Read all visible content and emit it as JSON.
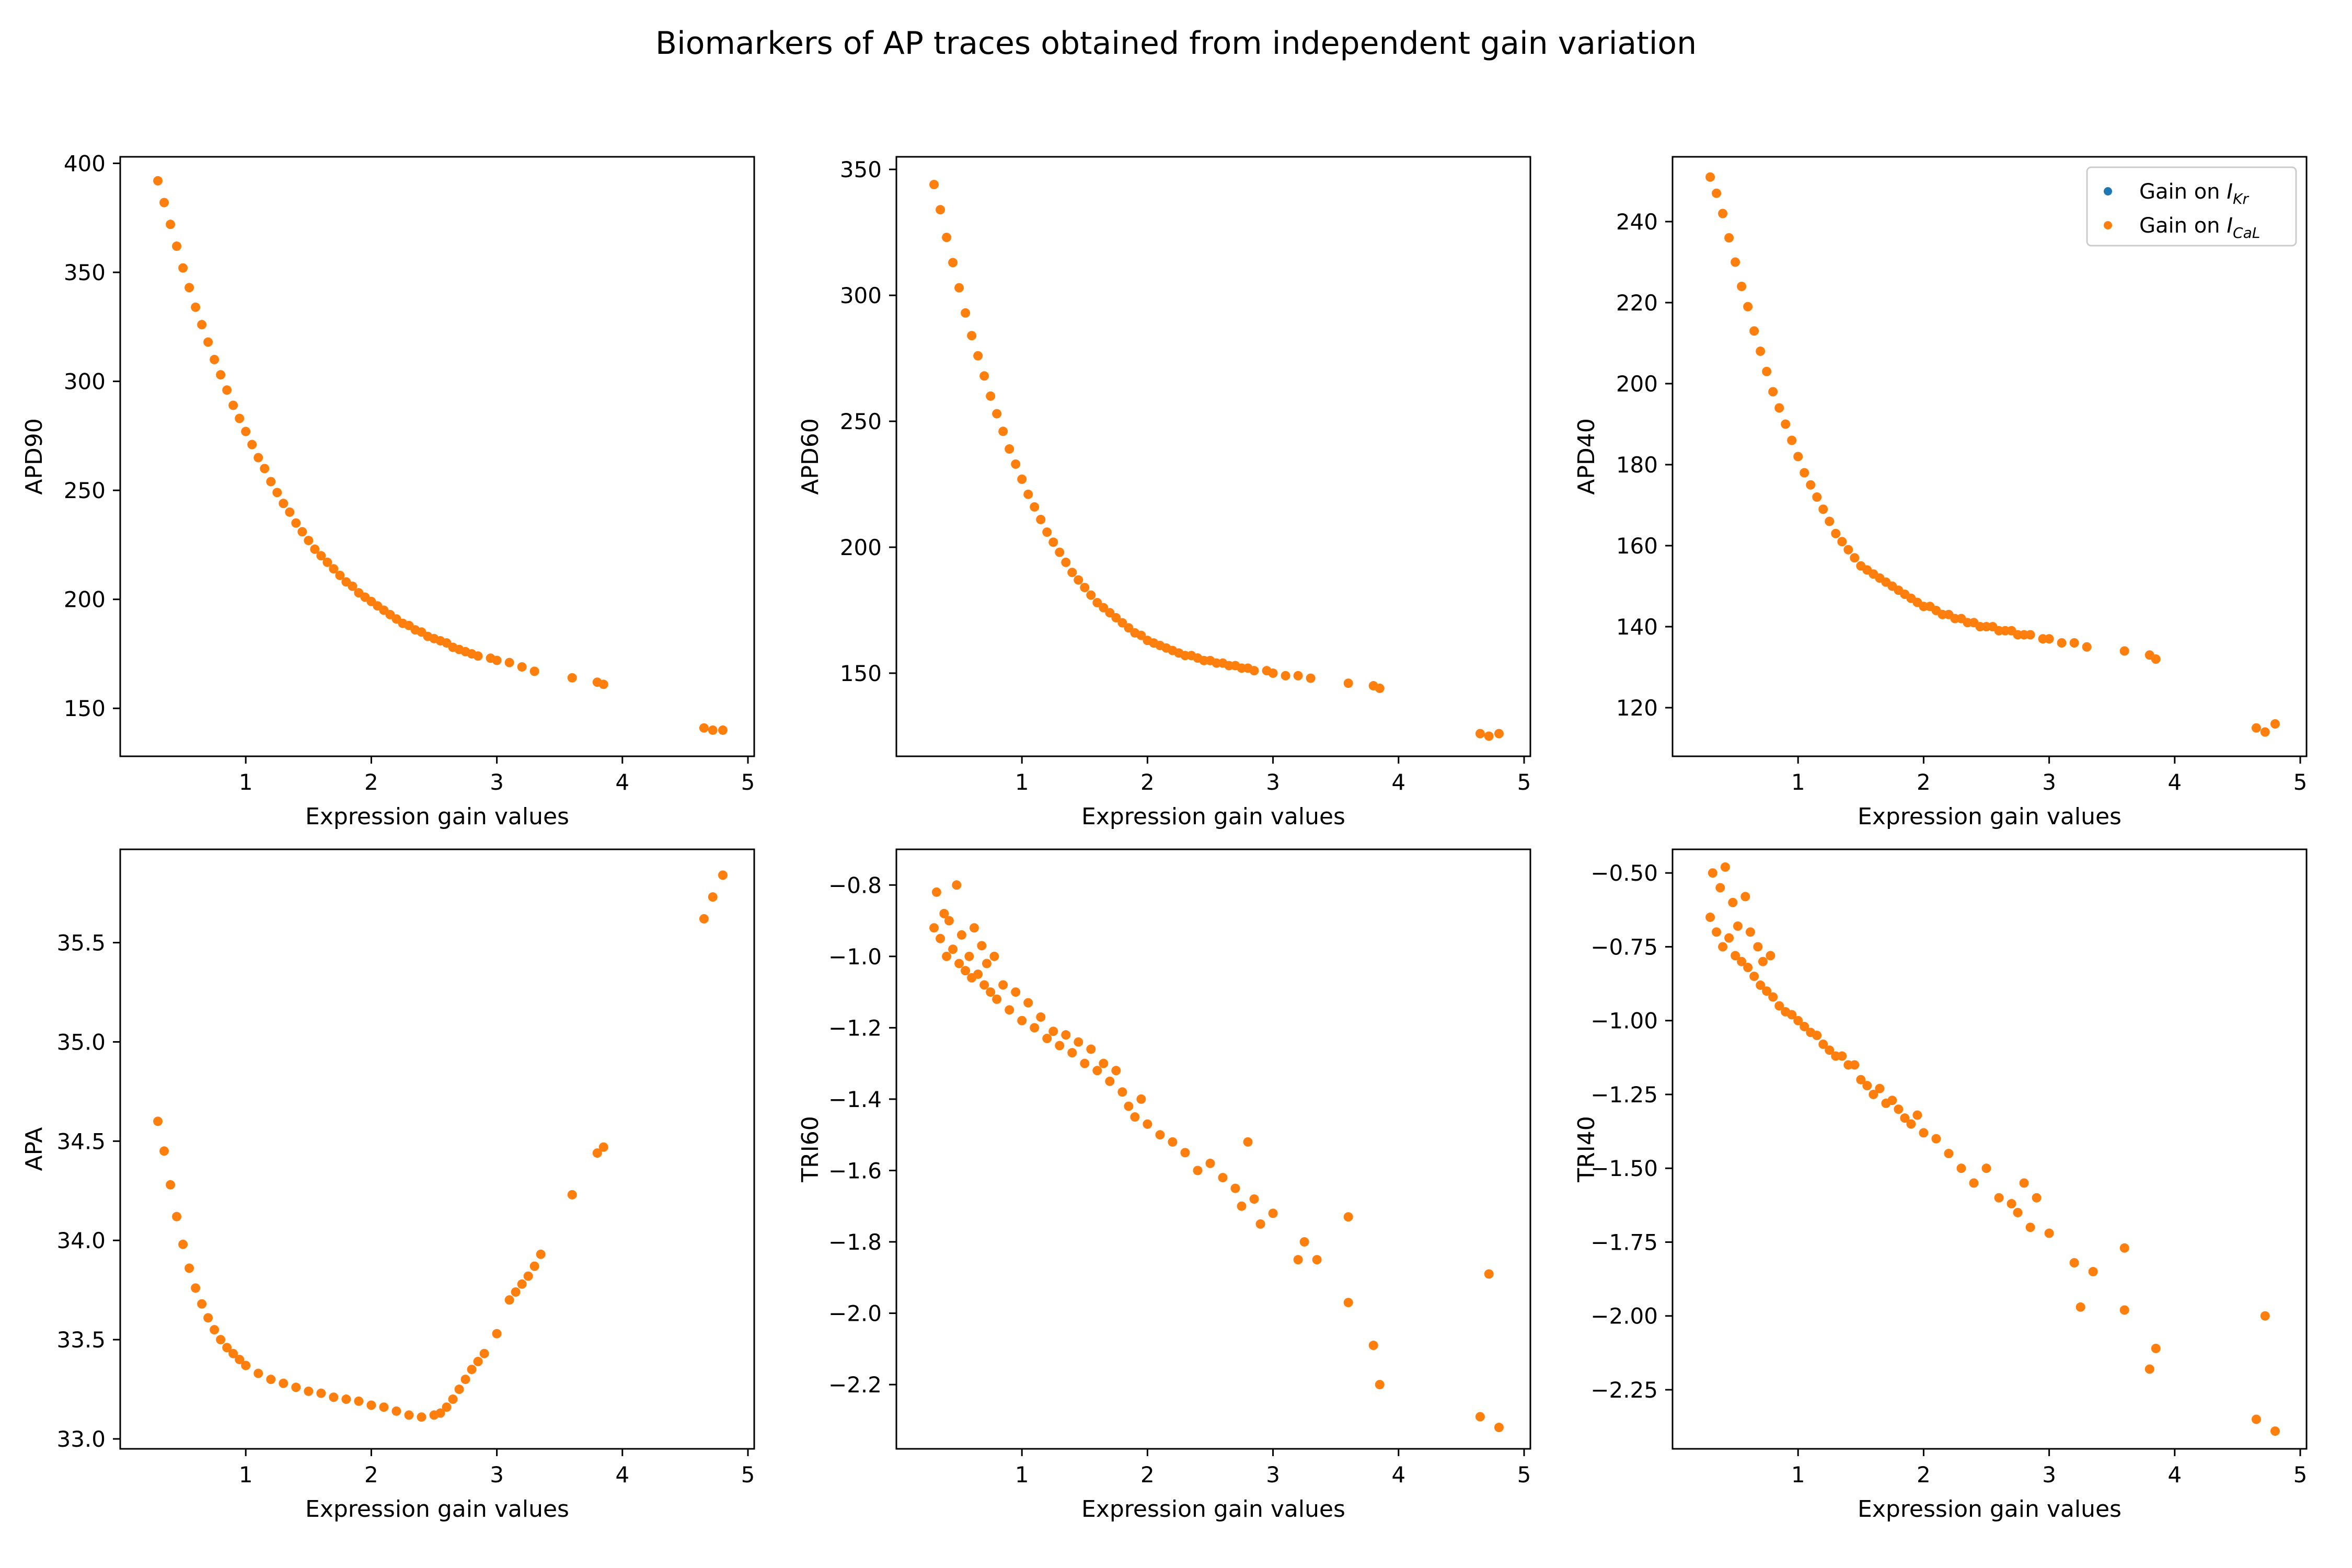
{
  "figure": {
    "title": "Biomarkers of AP traces obtained from independent gain variation"
  },
  "colors": {
    "series_ikr": "#1f77b4",
    "series_ical": "#ff7f0e",
    "axis": "#000000",
    "legend_border": "#cccccc"
  },
  "chart_data": [
    {
      "type": "scatter",
      "title": "",
      "xlabel": "Expression gain values",
      "ylabel": "APD90",
      "xlim": [
        0.0,
        5.05
      ],
      "ylim": [
        128,
        403
      ],
      "xticks": [
        1,
        2,
        3,
        4,
        5
      ],
      "yticks": [
        150,
        200,
        250,
        300,
        350,
        400
      ],
      "grid": false,
      "legend": null,
      "series": [
        {
          "name": "Gain on I_Kr",
          "x": [],
          "y": []
        },
        {
          "name": "Gain on I_CaL",
          "x": [
            0.3,
            0.35,
            0.4,
            0.45,
            0.5,
            0.55,
            0.6,
            0.65,
            0.7,
            0.75,
            0.8,
            0.85,
            0.9,
            0.95,
            1.0,
            1.05,
            1.1,
            1.15,
            1.2,
            1.25,
            1.3,
            1.35,
            1.4,
            1.45,
            1.5,
            1.55,
            1.6,
            1.65,
            1.7,
            1.75,
            1.8,
            1.85,
            1.9,
            1.95,
            2.0,
            2.05,
            2.1,
            2.15,
            2.2,
            2.25,
            2.3,
            2.35,
            2.4,
            2.45,
            2.5,
            2.55,
            2.6,
            2.65,
            2.7,
            2.75,
            2.8,
            2.85,
            2.95,
            3.0,
            3.1,
            3.2,
            3.3,
            3.6,
            3.8,
            3.85,
            4.65,
            4.72,
            4.8
          ],
          "y": [
            392,
            382,
            372,
            362,
            352,
            343,
            334,
            326,
            318,
            310,
            303,
            296,
            289,
            283,
            277,
            271,
            265,
            260,
            254,
            249,
            244,
            240,
            235,
            231,
            227,
            223,
            220,
            217,
            214,
            211,
            208,
            206,
            203,
            201,
            199,
            197,
            195,
            193,
            191,
            189,
            188,
            186,
            185,
            183,
            182,
            181,
            180,
            178,
            177,
            176,
            175,
            174,
            173,
            172,
            171,
            169,
            167,
            164,
            162,
            161,
            141,
            140,
            140
          ]
        }
      ]
    },
    {
      "type": "scatter",
      "title": "",
      "xlabel": "Expression gain values",
      "ylabel": "APD60",
      "xlim": [
        0.0,
        5.05
      ],
      "ylim": [
        117,
        355
      ],
      "xticks": [
        1,
        2,
        3,
        4,
        5
      ],
      "yticks": [
        150,
        200,
        250,
        300,
        350
      ],
      "grid": false,
      "legend": null,
      "series": [
        {
          "name": "Gain on I_Kr",
          "x": [],
          "y": []
        },
        {
          "name": "Gain on I_CaL",
          "x": [
            0.3,
            0.35,
            0.4,
            0.45,
            0.5,
            0.55,
            0.6,
            0.65,
            0.7,
            0.75,
            0.8,
            0.85,
            0.9,
            0.95,
            1.0,
            1.05,
            1.1,
            1.15,
            1.2,
            1.25,
            1.3,
            1.35,
            1.4,
            1.45,
            1.5,
            1.55,
            1.6,
            1.65,
            1.7,
            1.75,
            1.8,
            1.85,
            1.9,
            1.95,
            2.0,
            2.05,
            2.1,
            2.15,
            2.2,
            2.25,
            2.3,
            2.35,
            2.4,
            2.45,
            2.5,
            2.55,
            2.6,
            2.65,
            2.7,
            2.75,
            2.8,
            2.85,
            2.95,
            3.0,
            3.1,
            3.2,
            3.3,
            3.6,
            3.8,
            3.85,
            4.65,
            4.72,
            4.8
          ],
          "y": [
            344,
            334,
            323,
            313,
            303,
            293,
            284,
            276,
            268,
            260,
            253,
            246,
            239,
            233,
            227,
            221,
            216,
            211,
            206,
            202,
            198,
            194,
            190,
            187,
            184,
            181,
            178,
            176,
            174,
            172,
            170,
            168,
            166,
            165,
            163,
            162,
            161,
            160,
            159,
            158,
            157,
            157,
            156,
            155,
            155,
            154,
            154,
            153,
            153,
            152,
            152,
            151,
            151,
            150,
            149,
            149,
            148,
            146,
            145,
            144,
            126,
            125,
            126
          ]
        }
      ]
    },
    {
      "type": "scatter",
      "title": "",
      "xlabel": "Expression gain values",
      "ylabel": "APD40",
      "xlim": [
        0.0,
        5.05
      ],
      "ylim": [
        108,
        256
      ],
      "xticks": [
        1,
        2,
        3,
        4,
        5
      ],
      "yticks": [
        120,
        140,
        160,
        180,
        200,
        220,
        240
      ],
      "grid": false,
      "legend": "top-right",
      "series": [
        {
          "name": "Gain on I_Kr",
          "x": [],
          "y": []
        },
        {
          "name": "Gain on I_CaL",
          "x": [
            0.3,
            0.35,
            0.4,
            0.45,
            0.5,
            0.55,
            0.6,
            0.65,
            0.7,
            0.75,
            0.8,
            0.85,
            0.9,
            0.95,
            1.0,
            1.05,
            1.1,
            1.15,
            1.2,
            1.25,
            1.3,
            1.35,
            1.4,
            1.45,
            1.5,
            1.55,
            1.6,
            1.65,
            1.7,
            1.75,
            1.8,
            1.85,
            1.9,
            1.95,
            2.0,
            2.05,
            2.1,
            2.15,
            2.2,
            2.25,
            2.3,
            2.35,
            2.4,
            2.45,
            2.5,
            2.55,
            2.6,
            2.65,
            2.7,
            2.75,
            2.8,
            2.85,
            2.95,
            3.0,
            3.1,
            3.2,
            3.3,
            3.6,
            3.8,
            3.85,
            4.65,
            4.72,
            4.8
          ],
          "y": [
            251,
            247,
            242,
            236,
            230,
            224,
            219,
            213,
            208,
            203,
            198,
            194,
            190,
            186,
            182,
            178,
            175,
            172,
            169,
            166,
            163,
            161,
            159,
            157,
            155,
            154,
            153,
            152,
            151,
            150,
            149,
            148,
            147,
            146,
            145,
            145,
            144,
            143,
            143,
            142,
            142,
            141,
            141,
            140,
            140,
            140,
            139,
            139,
            139,
            138,
            138,
            138,
            137,
            137,
            136,
            136,
            135,
            134,
            133,
            132,
            115,
            114,
            116
          ]
        }
      ]
    },
    {
      "type": "scatter",
      "title": "",
      "xlabel": "Expression gain values",
      "ylabel": "APA",
      "xlim": [
        0.0,
        5.05
      ],
      "ylim": [
        32.95,
        35.97
      ],
      "xticks": [
        1,
        2,
        3,
        4,
        5
      ],
      "yticks": [
        33.0,
        33.5,
        34.0,
        34.5,
        35.0,
        35.5
      ],
      "ytick_labels": [
        "33.0",
        "33.5",
        "34.0",
        "34.5",
        "35.0",
        "35.5"
      ],
      "grid": false,
      "legend": null,
      "series": [
        {
          "name": "Gain on I_Kr",
          "x": [],
          "y": []
        },
        {
          "name": "Gain on I_CaL",
          "x": [
            0.3,
            0.35,
            0.4,
            0.45,
            0.5,
            0.55,
            0.6,
            0.65,
            0.7,
            0.75,
            0.8,
            0.85,
            0.9,
            0.95,
            1.0,
            1.1,
            1.2,
            1.3,
            1.4,
            1.5,
            1.6,
            1.7,
            1.8,
            1.9,
            2.0,
            2.1,
            2.2,
            2.3,
            2.4,
            2.5,
            2.55,
            2.6,
            2.65,
            2.7,
            2.75,
            2.8,
            2.85,
            2.9,
            3.0,
            3.1,
            3.15,
            3.2,
            3.25,
            3.3,
            3.35,
            3.6,
            3.8,
            3.85,
            4.65,
            4.72,
            4.8
          ],
          "y": [
            34.6,
            34.45,
            34.28,
            34.12,
            33.98,
            33.86,
            33.76,
            33.68,
            33.61,
            33.55,
            33.5,
            33.46,
            33.43,
            33.4,
            33.37,
            33.33,
            33.3,
            33.28,
            33.26,
            33.24,
            33.23,
            33.21,
            33.2,
            33.19,
            33.17,
            33.16,
            33.14,
            33.12,
            33.11,
            33.12,
            33.13,
            33.16,
            33.2,
            33.25,
            33.3,
            33.35,
            33.39,
            33.43,
            33.53,
            33.7,
            33.74,
            33.78,
            33.82,
            33.87,
            33.93,
            34.23,
            34.44,
            34.47,
            35.62,
            35.73,
            35.84
          ]
        }
      ]
    },
    {
      "type": "scatter",
      "title": "",
      "xlabel": "Expression gain values",
      "ylabel": "TRI60",
      "xlim": [
        0.0,
        5.05
      ],
      "ylim": [
        -2.38,
        -0.7
      ],
      "xticks": [
        1,
        2,
        3,
        4,
        5
      ],
      "yticks": [
        -2.2,
        -2.0,
        -1.8,
        -1.6,
        -1.4,
        -1.2,
        -1.0,
        -0.8
      ],
      "ytick_labels": [
        "−2.2",
        "−2.0",
        "−1.8",
        "−1.6",
        "−1.4",
        "−1.2",
        "−1.0",
        "−0.8"
      ],
      "grid": false,
      "legend": null,
      "series": [
        {
          "name": "Gain on I_Kr",
          "x": [],
          "y": []
        },
        {
          "name": "Gain on I_CaL",
          "x": [
            0.3,
            0.32,
            0.35,
            0.38,
            0.4,
            0.42,
            0.45,
            0.48,
            0.5,
            0.52,
            0.55,
            0.58,
            0.6,
            0.62,
            0.65,
            0.68,
            0.7,
            0.72,
            0.75,
            0.78,
            0.8,
            0.85,
            0.9,
            0.95,
            1.0,
            1.05,
            1.1,
            1.15,
            1.2,
            1.25,
            1.3,
            1.35,
            1.4,
            1.45,
            1.5,
            1.55,
            1.6,
            1.65,
            1.7,
            1.75,
            1.8,
            1.85,
            1.9,
            1.95,
            2.0,
            2.1,
            2.2,
            2.3,
            2.4,
            2.5,
            2.6,
            2.7,
            2.75,
            2.8,
            2.85,
            2.9,
            3.0,
            3.2,
            3.25,
            3.35,
            3.6,
            3.6,
            3.8,
            3.85,
            4.65,
            4.72,
            4.8
          ],
          "y": [
            -0.92,
            -0.82,
            -0.95,
            -0.88,
            -1.0,
            -0.9,
            -0.98,
            -0.8,
            -1.02,
            -0.94,
            -1.04,
            -1.0,
            -1.06,
            -0.92,
            -1.05,
            -0.97,
            -1.08,
            -1.02,
            -1.1,
            -1.0,
            -1.12,
            -1.08,
            -1.15,
            -1.1,
            -1.18,
            -1.13,
            -1.2,
            -1.17,
            -1.23,
            -1.21,
            -1.25,
            -1.22,
            -1.27,
            -1.24,
            -1.3,
            -1.26,
            -1.32,
            -1.3,
            -1.35,
            -1.32,
            -1.38,
            -1.42,
            -1.45,
            -1.4,
            -1.47,
            -1.5,
            -1.52,
            -1.55,
            -1.6,
            -1.58,
            -1.62,
            -1.65,
            -1.7,
            -1.52,
            -1.68,
            -1.75,
            -1.72,
            -1.85,
            -1.8,
            -1.85,
            -1.73,
            -1.97,
            -2.09,
            -2.2,
            -2.29,
            -1.89,
            -2.32
          ]
        }
      ]
    },
    {
      "type": "scatter",
      "title": "",
      "xlabel": "Expression gain values",
      "ylabel": "TRI40",
      "xlim": [
        0.0,
        5.05
      ],
      "ylim": [
        -2.45,
        -0.42
      ],
      "xticks": [
        1,
        2,
        3,
        4,
        5
      ],
      "yticks": [
        -2.25,
        -2.0,
        -1.75,
        -1.5,
        -1.25,
        -1.0,
        -0.75,
        -0.5
      ],
      "ytick_labels": [
        "−2.25",
        "−2.00",
        "−1.75",
        "−1.50",
        "−1.25",
        "−1.00",
        "−0.75",
        "−0.50"
      ],
      "grid": false,
      "legend": null,
      "series": [
        {
          "name": "Gain on I_Kr",
          "x": [],
          "y": []
        },
        {
          "name": "Gain on I_CaL",
          "x": [
            0.3,
            0.32,
            0.35,
            0.38,
            0.4,
            0.42,
            0.45,
            0.48,
            0.5,
            0.52,
            0.55,
            0.58,
            0.6,
            0.62,
            0.65,
            0.68,
            0.7,
            0.72,
            0.75,
            0.78,
            0.8,
            0.85,
            0.9,
            0.95,
            1.0,
            1.05,
            1.1,
            1.15,
            1.2,
            1.25,
            1.3,
            1.35,
            1.4,
            1.45,
            1.5,
            1.55,
            1.6,
            1.65,
            1.7,
            1.75,
            1.8,
            1.85,
            1.9,
            1.95,
            2.0,
            2.1,
            2.2,
            2.3,
            2.4,
            2.5,
            2.6,
            2.7,
            2.75,
            2.8,
            2.85,
            2.9,
            3.0,
            3.2,
            3.25,
            3.35,
            3.6,
            3.6,
            3.8,
            3.85,
            4.65,
            4.72,
            4.8
          ],
          "y": [
            -0.65,
            -0.5,
            -0.7,
            -0.55,
            -0.75,
            -0.48,
            -0.72,
            -0.6,
            -0.78,
            -0.68,
            -0.8,
            -0.58,
            -0.82,
            -0.7,
            -0.85,
            -0.75,
            -0.88,
            -0.8,
            -0.9,
            -0.78,
            -0.92,
            -0.95,
            -0.97,
            -0.98,
            -1.0,
            -1.02,
            -1.04,
            -1.05,
            -1.08,
            -1.1,
            -1.12,
            -1.12,
            -1.15,
            -1.15,
            -1.2,
            -1.22,
            -1.25,
            -1.23,
            -1.28,
            -1.27,
            -1.3,
            -1.33,
            -1.35,
            -1.32,
            -1.38,
            -1.4,
            -1.45,
            -1.5,
            -1.55,
            -1.5,
            -1.6,
            -1.62,
            -1.65,
            -1.55,
            -1.7,
            -1.6,
            -1.72,
            -1.82,
            -1.97,
            -1.85,
            -1.77,
            -1.98,
            -2.18,
            -2.11,
            -2.35,
            -2.0,
            -2.39
          ]
        }
      ]
    }
  ],
  "legend": {
    "entries": [
      {
        "main": "Gain on ",
        "sym": "I",
        "sub": "Kr",
        "color": "#1f77b4"
      },
      {
        "main": "Gain on ",
        "sym": "I",
        "sub": "CaL",
        "color": "#ff7f0e"
      }
    ]
  }
}
